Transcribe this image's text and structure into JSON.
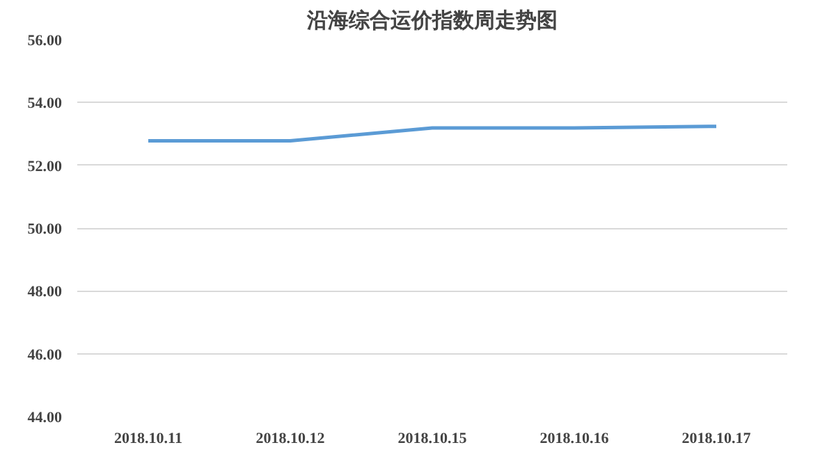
{
  "chart_data": {
    "type": "line",
    "title": "沿海综合运价指数周走势图",
    "categories": [
      "2018.10.11",
      "2018.10.12",
      "2018.10.15",
      "2018.10.16",
      "2018.10.17"
    ],
    "series": [
      {
        "color": "#5b9bd5",
        "values": [
          52.78,
          52.78,
          53.19,
          53.19,
          53.24
        ]
      }
    ],
    "ylim": [
      44,
      56
    ],
    "yticks": [
      {
        "value": 44,
        "label": "44.00"
      },
      {
        "value": 46,
        "label": "46.00"
      },
      {
        "value": 48,
        "label": "48.00"
      },
      {
        "value": 50,
        "label": "50.00"
      },
      {
        "value": 52,
        "label": "52.00"
      },
      {
        "value": 54,
        "label": "54.00"
      },
      {
        "value": 56,
        "label": "56.00"
      }
    ],
    "grid": "y",
    "marker": "none",
    "line_style": "solid"
  }
}
